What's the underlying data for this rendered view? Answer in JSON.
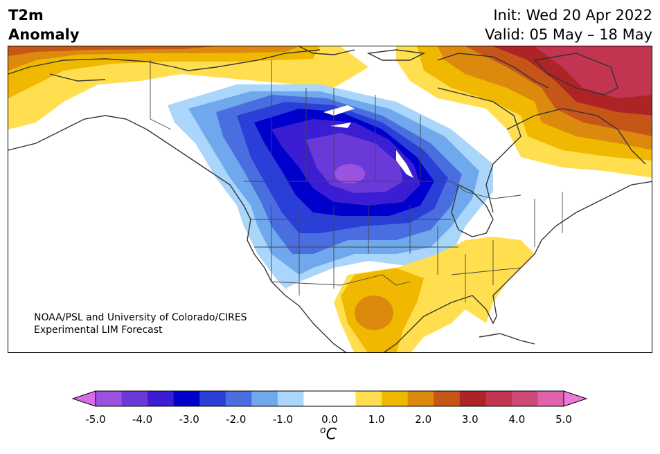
{
  "title": {
    "line1": "T2m",
    "line2": "Anomaly",
    "init": "Init: Wed 20 Apr 2022",
    "valid": "Valid: 05 May – 18 May"
  },
  "credit": {
    "line1": "NOAA/PSL and University of Colorado/CIRES",
    "line2": "Experimental LIM Forecast"
  },
  "colorbar": {
    "ticks": [
      "-5.0",
      "-4.0",
      "-3.0",
      "-2.0",
      "-1.0",
      "0.0",
      "1.0",
      "2.0",
      "3.0",
      "4.0",
      "5.0"
    ],
    "unit_sup": "o",
    "unit": "C",
    "colors": [
      "#d66ee8",
      "#9a52df",
      "#6a3ad8",
      "#3b1ed3",
      "#0000cd",
      "#2a3fd8",
      "#4a6ee0",
      "#6fa8ec",
      "#a9d6fa",
      "#ffffff",
      "#ffffff",
      "#ffdf50",
      "#f0b800",
      "#db8a0e",
      "#c65518",
      "#ae2426",
      "#c23450",
      "#cf4a7a",
      "#df62aa",
      "#ea78d6"
    ]
  },
  "map": {
    "region": "North America",
    "variable": "2m temperature anomaly",
    "cold_anomaly_colors": [
      "#a9d6fa",
      "#6fa8ec",
      "#4a6ee0",
      "#2a3fd8",
      "#0000cd",
      "#3b1ed3",
      "#6a3ad8",
      "#9a52df"
    ],
    "warm_anomaly_colors": [
      "#ffdf50",
      "#f0b800",
      "#db8a0e",
      "#c65518",
      "#ae2426",
      "#c23450"
    ],
    "coast_color": "#333333",
    "border_color": "#444444"
  }
}
